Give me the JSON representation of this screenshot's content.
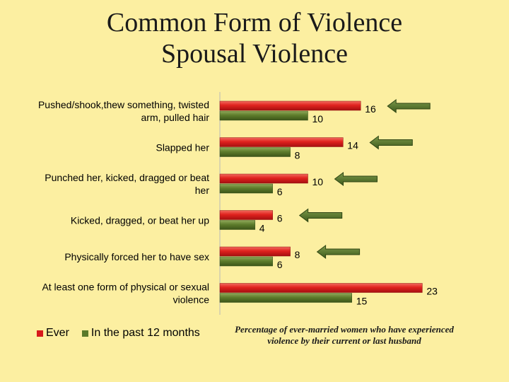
{
  "page": {
    "title_line1": "Common Form of Violence",
    "title_line2": "Spousal Violence",
    "caption": "Percentage of ever-married women who have experienced violence by their current or last husband"
  },
  "colors": {
    "background": "#FCEFA1",
    "ever": "#D7191C",
    "past12": "#5A7A2A",
    "arrow": "#55722E"
  },
  "chart_data": {
    "type": "bar",
    "orientation": "horizontal",
    "categories": [
      [
        "Pushed/shook,thew something, twisted",
        "arm, pulled hair"
      ],
      [
        "Slapped her"
      ],
      [
        "Punched her, kicked, dragged or beat",
        "her"
      ],
      [
        "Kicked, dragged, or beat her up"
      ],
      [
        "Physically forced her to have sex"
      ],
      [
        "At least one form of physical or sexual",
        "violence"
      ]
    ],
    "series": [
      {
        "name": "Ever",
        "values": [
          16,
          14,
          10,
          6,
          8,
          23
        ]
      },
      {
        "name": "In the past 12 months",
        "values": [
          10,
          8,
          6,
          4,
          6,
          15
        ]
      }
    ],
    "xlim": [
      0,
      28
    ],
    "data_labels": true,
    "grid": false,
    "legend_position": "bottom-left",
    "annotations": {
      "arrow_pointing_left_at_ever_bar": [
        true,
        true,
        true,
        true,
        true,
        false
      ]
    }
  }
}
